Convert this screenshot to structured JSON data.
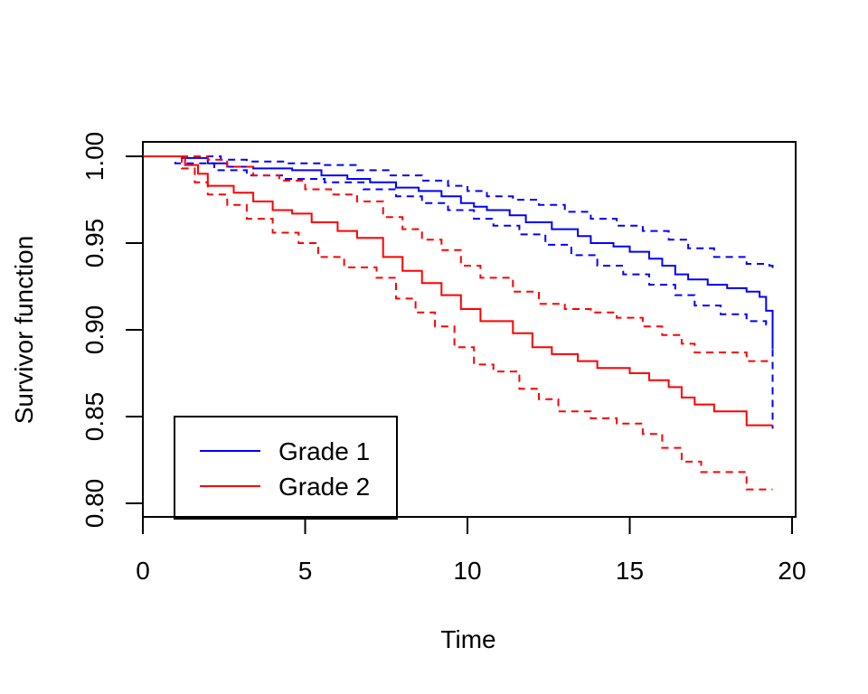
{
  "chart_data": {
    "type": "line",
    "title": "",
    "xlabel": "Time",
    "ylabel": "Survivor function",
    "xlim": [
      0,
      20
    ],
    "ylim": [
      0.79,
      1.008
    ],
    "x_ticks": [
      "0",
      "5",
      "10",
      "15",
      "20"
    ],
    "y_ticks": [
      "0.80",
      "0.85",
      "0.90",
      "0.95",
      "1.00"
    ],
    "x_tick_values": [
      0,
      5,
      10,
      15,
      20
    ],
    "y_tick_values": [
      0.8,
      0.85,
      0.9,
      0.95,
      1.0
    ],
    "grid": false,
    "legend": "bottom-left",
    "series": [
      {
        "name": "Grade 1",
        "color": "#0000ff",
        "style": "solid",
        "x": [
          0,
          1.2,
          2.0,
          2.6,
          3.4,
          4.6,
          5.5,
          6.3,
          7.0,
          7.8,
          8.5,
          9.2,
          9.8,
          10.2,
          10.6,
          11.3,
          11.8,
          12.6,
          13.4,
          13.8,
          14.5,
          15.0,
          15.6,
          16.0,
          16.4,
          16.8,
          17.4,
          18.0,
          18.6,
          19.0,
          19.2,
          19.4
        ],
        "y": [
          1.0,
          0.999,
          0.996,
          0.994,
          0.993,
          0.992,
          0.989,
          0.987,
          0.985,
          0.982,
          0.98,
          0.977,
          0.973,
          0.971,
          0.969,
          0.966,
          0.962,
          0.958,
          0.954,
          0.95,
          0.948,
          0.945,
          0.941,
          0.937,
          0.932,
          0.929,
          0.926,
          0.924,
          0.922,
          0.919,
          0.911,
          0.889
        ]
      },
      {
        "name": "",
        "color": "#0000ff",
        "style": "dashed",
        "x": [
          0,
          1.5,
          2.4,
          3.2,
          4.4,
          5.5,
          6.6,
          7.6,
          8.6,
          9.4,
          10.0,
          10.6,
          11.4,
          12.2,
          13.0,
          13.8,
          14.6,
          15.4,
          16.2,
          16.8,
          17.6,
          18.6,
          19.3,
          19.4
        ],
        "y": [
          1.0,
          1.0,
          0.998,
          0.997,
          0.996,
          0.995,
          0.992,
          0.989,
          0.986,
          0.983,
          0.98,
          0.977,
          0.975,
          0.972,
          0.968,
          0.964,
          0.96,
          0.957,
          0.952,
          0.947,
          0.942,
          0.938,
          0.937,
          0.935
        ]
      },
      {
        "name": "",
        "color": "#0000ff",
        "style": "dashed",
        "x": [
          0,
          1.0,
          2.2,
          3.2,
          4.4,
          5.6,
          6.8,
          7.8,
          8.6,
          9.4,
          10.2,
          10.8,
          11.6,
          12.4,
          13.2,
          14.0,
          14.8,
          15.6,
          16.4,
          17.0,
          17.8,
          18.6,
          19.2,
          19.4
        ],
        "y": [
          1.0,
          0.996,
          0.992,
          0.989,
          0.987,
          0.985,
          0.981,
          0.977,
          0.973,
          0.969,
          0.964,
          0.96,
          0.955,
          0.949,
          0.943,
          0.937,
          0.932,
          0.926,
          0.92,
          0.914,
          0.909,
          0.905,
          0.903,
          0.843
        ]
      },
      {
        "name": "Grade 2",
        "color": "#ff0000",
        "style": "solid",
        "x": [
          0,
          1.3,
          1.7,
          2.0,
          2.8,
          3.4,
          4.0,
          4.6,
          5.2,
          6.0,
          6.6,
          7.4,
          8.0,
          8.6,
          9.2,
          9.8,
          10.4,
          11.4,
          12.0,
          12.6,
          13.4,
          14.0,
          15.0,
          15.6,
          16.2,
          16.6,
          17.0,
          17.6,
          18.6,
          19.3,
          19.4
        ],
        "y": [
          1.0,
          0.995,
          0.99,
          0.983,
          0.979,
          0.974,
          0.969,
          0.967,
          0.962,
          0.957,
          0.953,
          0.942,
          0.934,
          0.927,
          0.92,
          0.912,
          0.905,
          0.898,
          0.89,
          0.886,
          0.882,
          0.878,
          0.875,
          0.871,
          0.867,
          0.861,
          0.857,
          0.853,
          0.845,
          0.845,
          0.845
        ]
      },
      {
        "name": "",
        "color": "#ff0000",
        "style": "dashed",
        "x": [
          0,
          1.5,
          2.0,
          2.6,
          3.4,
          4.2,
          5.0,
          5.8,
          6.6,
          7.4,
          8.0,
          8.6,
          9.2,
          9.8,
          10.4,
          11.4,
          12.2,
          13.0,
          13.8,
          14.6,
          15.4,
          16.0,
          16.6,
          17.0,
          18.6,
          19.4
        ],
        "y": [
          1.0,
          1.0,
          0.998,
          0.994,
          0.989,
          0.986,
          0.981,
          0.978,
          0.974,
          0.965,
          0.958,
          0.952,
          0.946,
          0.937,
          0.93,
          0.922,
          0.915,
          0.912,
          0.91,
          0.907,
          0.902,
          0.897,
          0.892,
          0.887,
          0.882,
          0.882
        ]
      },
      {
        "name": "",
        "color": "#ff0000",
        "style": "dashed",
        "x": [
          0,
          1.2,
          1.6,
          2.0,
          2.6,
          3.2,
          4.0,
          4.8,
          5.4,
          6.2,
          7.2,
          7.8,
          8.4,
          9.0,
          9.6,
          10.2,
          10.8,
          11.6,
          12.2,
          12.8,
          13.8,
          14.6,
          15.4,
          16.0,
          16.6,
          17.2,
          18.6,
          19.4
        ],
        "y": [
          1.0,
          0.993,
          0.985,
          0.978,
          0.972,
          0.964,
          0.956,
          0.95,
          0.942,
          0.936,
          0.93,
          0.918,
          0.91,
          0.902,
          0.89,
          0.88,
          0.876,
          0.866,
          0.86,
          0.853,
          0.849,
          0.846,
          0.84,
          0.832,
          0.824,
          0.818,
          0.808,
          0.808
        ]
      }
    ]
  }
}
